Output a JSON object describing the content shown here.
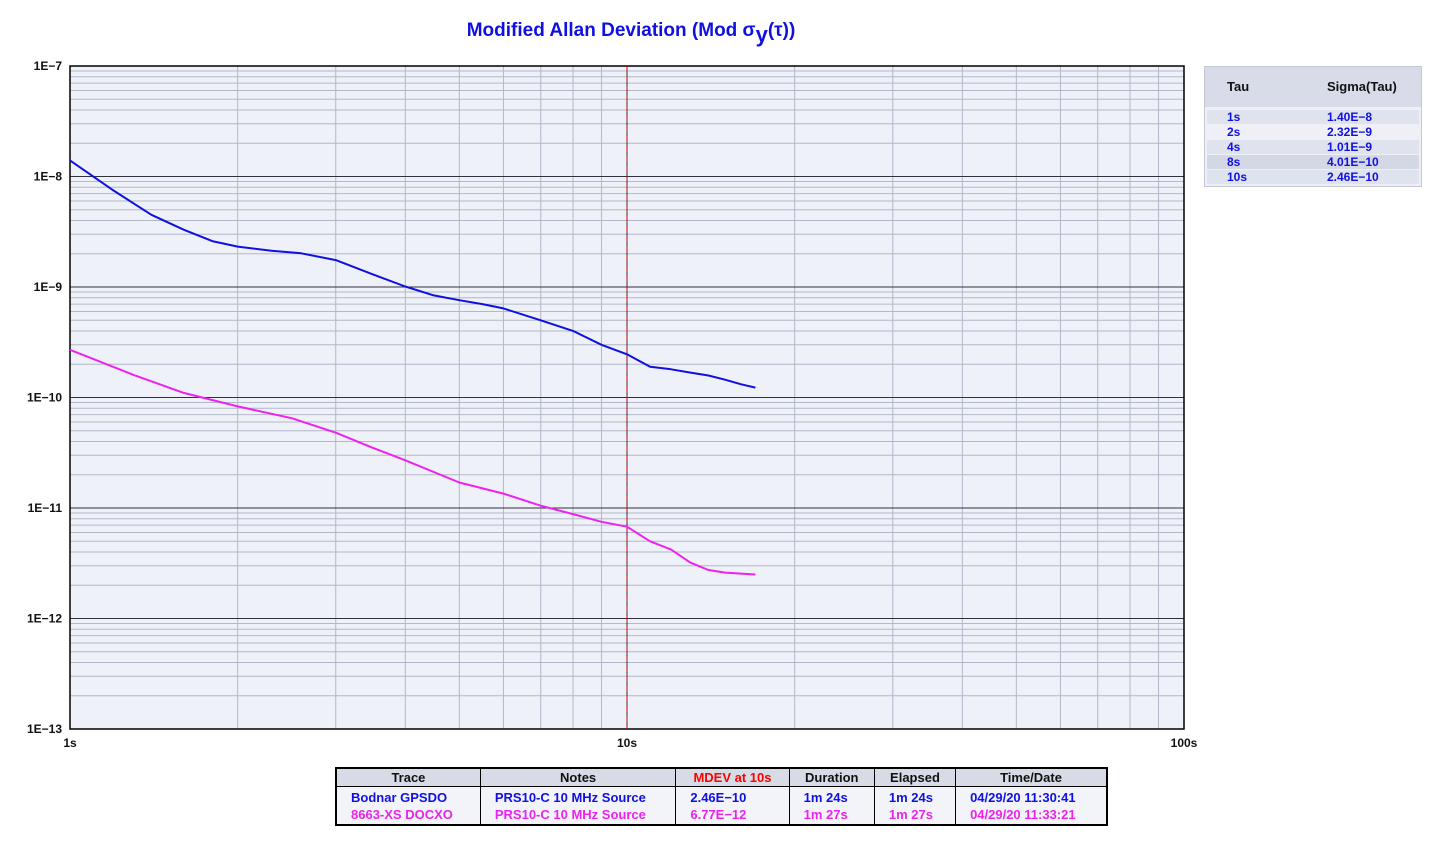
{
  "title": {
    "main": "Modified Allan Deviation (Mod σ",
    "sub": "y",
    "end": "(τ))"
  },
  "colors": {
    "blue_trace": "#1010e0",
    "magenta_trace": "#ee22ee",
    "plot_bg": "#eef1f7",
    "marker": "#cc0000",
    "mdev_header": "#ff0000"
  },
  "chart_data": {
    "type": "line",
    "title": "Modified Allan Deviation (Mod σ y(τ))",
    "x_scale": "log",
    "y_scale": "log",
    "xlim": [
      1,
      100
    ],
    "ylim": [
      1e-13,
      1e-07
    ],
    "x_ticks": [
      {
        "value": 1,
        "label": "1s"
      },
      {
        "value": 10,
        "label": "10s"
      },
      {
        "value": 100,
        "label": "100s"
      }
    ],
    "y_ticks": [
      {
        "value": 1e-07,
        "label": "1E−7"
      },
      {
        "value": 1e-08,
        "label": "1E−8"
      },
      {
        "value": 1e-09,
        "label": "1E−9"
      },
      {
        "value": 1e-10,
        "label": "1E−10"
      },
      {
        "value": 1e-11,
        "label": "1E−11"
      },
      {
        "value": 1e-12,
        "label": "1E−12"
      },
      {
        "value": 1e-13,
        "label": "1E−13"
      }
    ],
    "grid": true,
    "marker_x": 10,
    "series": [
      {
        "name": "Bodnar GPSDO",
        "color": "#1010e0",
        "x": [
          1.0,
          1.2,
          1.4,
          1.6,
          1.8,
          2.0,
          2.3,
          2.6,
          3.0,
          3.5,
          4.0,
          4.5,
          5.0,
          5.5,
          6.0,
          7.0,
          8.0,
          9.0,
          10.0,
          11.0,
          12.0,
          13.0,
          14.0,
          15.0,
          16.0,
          17.0
        ],
        "y": [
          1.4e-08,
          7.4e-09,
          4.5e-09,
          3.3e-09,
          2.6e-09,
          2.32e-09,
          2.13e-09,
          2.02e-09,
          1.75e-09,
          1.3e-09,
          1.01e-09,
          8.4e-10,
          7.6e-10,
          7e-10,
          6.4e-10,
          5e-10,
          4.01e-10,
          3e-10,
          2.46e-10,
          1.9e-10,
          1.8e-10,
          1.68e-10,
          1.58e-10,
          1.45e-10,
          1.32e-10,
          1.23e-10
        ]
      },
      {
        "name": "8663-XS DOCXO",
        "color": "#ee22ee",
        "x": [
          1.0,
          1.3,
          1.6,
          2.0,
          2.5,
          3.0,
          3.5,
          4.0,
          5.0,
          6.0,
          7.0,
          8.0,
          9.0,
          10.0,
          11.0,
          12.0,
          13.0,
          14.0,
          15.0,
          16.0,
          17.0
        ],
        "y": [
          2.7e-10,
          1.6e-10,
          1.1e-10,
          8.3e-11,
          6.5e-11,
          4.8e-11,
          3.5e-11,
          2.7e-11,
          1.7e-11,
          1.35e-11,
          1.05e-11,
          8.8e-12,
          7.5e-12,
          6.77e-12,
          5e-12,
          4.2e-12,
          3.2e-12,
          2.75e-12,
          2.6e-12,
          2.55e-12,
          2.5e-12
        ]
      }
    ]
  },
  "tau_table": {
    "headers": {
      "tau": "Tau",
      "sigma": "Sigma(Tau)"
    },
    "rows": [
      {
        "tau": "1s",
        "sigma": "1.40E−8"
      },
      {
        "tau": "2s",
        "sigma": "2.32E−9"
      },
      {
        "tau": "4s",
        "sigma": "1.01E−9"
      },
      {
        "tau": "8s",
        "sigma": "4.01E−10"
      },
      {
        "tau": "10s",
        "sigma": "2.46E−10"
      }
    ]
  },
  "legend": {
    "headers": {
      "trace": "Trace",
      "notes": "Notes",
      "mdev": "MDEV at 10s",
      "duration": "Duration",
      "elapsed": "Elapsed",
      "timedate": "Time/Date"
    },
    "rows": [
      {
        "trace": "Bodnar GPSDO",
        "notes": "PRS10-C 10 MHz Source",
        "mdev": "2.46E−10",
        "duration": "1m 24s",
        "elapsed": "1m 24s",
        "timedate": "04/29/20 11:30:41",
        "color": "#1010e0"
      },
      {
        "trace": "8663-XS DOCXO",
        "notes": "PRS10-C 10 MHz Source",
        "mdev": "6.77E−12",
        "duration": "1m 27s",
        "elapsed": "1m 27s",
        "timedate": "04/29/20 11:33:21",
        "color": "#ee22ee"
      }
    ]
  }
}
